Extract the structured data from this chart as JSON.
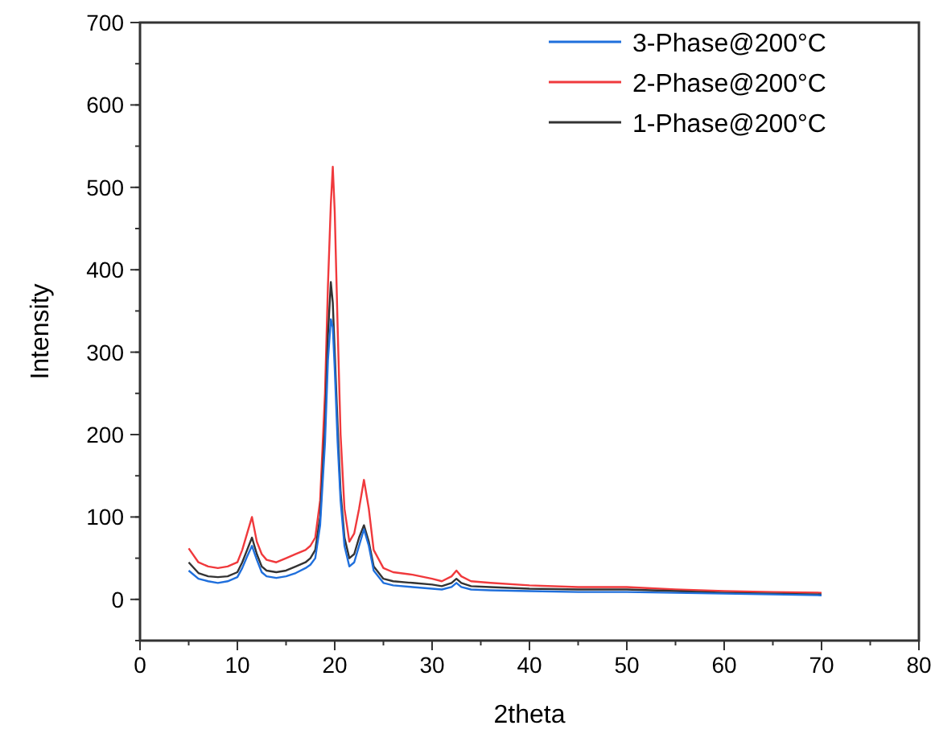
{
  "chart_data": {
    "type": "line",
    "xlabel": "2theta",
    "ylabel": "Intensity",
    "x": [
      5,
      6,
      7,
      8,
      9,
      10,
      10.5,
      11,
      11.5,
      12,
      12.5,
      13,
      14,
      15,
      16,
      17,
      17.5,
      18,
      18.5,
      19,
      19.3,
      19.6,
      19.8,
      20,
      20.3,
      20.6,
      21,
      21.5,
      22,
      22.5,
      23,
      23.5,
      24,
      25,
      26,
      28,
      30,
      31,
      32,
      32.5,
      33,
      34,
      36,
      40,
      45,
      50,
      55,
      60,
      65,
      70
    ],
    "series": [
      {
        "name": "3-Phase@200°C",
        "color": "#1f6fdc",
        "values": [
          35,
          25,
          22,
          20,
          22,
          27,
          38,
          52,
          65,
          48,
          33,
          28,
          26,
          28,
          32,
          38,
          42,
          50,
          90,
          190,
          290,
          340,
          330,
          280,
          190,
          120,
          65,
          40,
          45,
          65,
          85,
          65,
          35,
          20,
          17,
          15,
          13,
          12,
          15,
          20,
          15,
          12,
          11,
          10,
          9,
          9,
          8,
          7,
          6,
          5
        ]
      },
      {
        "name": "2-Phase@200°C",
        "color": "#f0393c",
        "values": [
          62,
          45,
          40,
          38,
          40,
          45,
          60,
          80,
          100,
          70,
          55,
          48,
          45,
          50,
          55,
          60,
          65,
          75,
          120,
          250,
          380,
          480,
          525,
          470,
          330,
          200,
          110,
          70,
          80,
          110,
          145,
          110,
          60,
          38,
          33,
          30,
          25,
          22,
          28,
          35,
          28,
          22,
          20,
          17,
          15,
          15,
          12,
          10,
          9,
          8
        ]
      },
      {
        "name": "1-Phase@200°C",
        "color": "#333333",
        "values": [
          45,
          32,
          28,
          27,
          28,
          33,
          45,
          60,
          75,
          55,
          40,
          35,
          33,
          35,
          40,
          45,
          50,
          60,
          100,
          210,
          320,
          385,
          360,
          300,
          210,
          130,
          75,
          50,
          55,
          75,
          90,
          70,
          40,
          25,
          22,
          20,
          18,
          16,
          20,
          25,
          20,
          16,
          15,
          13,
          12,
          12,
          10,
          8,
          7,
          6
        ]
      }
    ],
    "xlim": [
      0,
      80
    ],
    "xticks": [
      0,
      10,
      20,
      30,
      40,
      50,
      60,
      70,
      80
    ],
    "ylim": [
      -50,
      700
    ],
    "yticks": [
      0,
      100,
      200,
      300,
      400,
      500,
      600,
      700
    ],
    "legend": "top right",
    "grid": false,
    "marker": "none",
    "line_style": "solid"
  }
}
